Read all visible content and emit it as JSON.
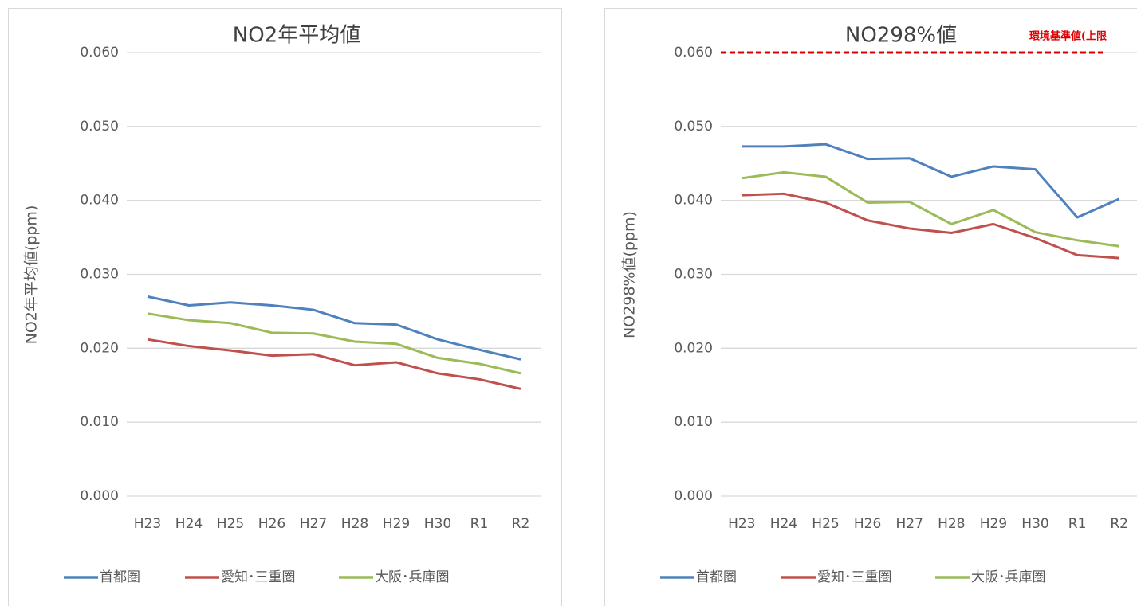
{
  "chart_data": [
    {
      "type": "line",
      "title": "NO2年平均値",
      "y_label": "NO2年平均値(ppm)",
      "categories": [
        "H23",
        "H24",
        "H25",
        "H26",
        "H27",
        "H28",
        "H29",
        "H30",
        "R1",
        "R2"
      ],
      "series": [
        {
          "name": "首都圏",
          "color": "#4f81bd",
          "values": [
            0.027,
            0.0258,
            0.0262,
            0.0258,
            0.0252,
            0.0234,
            0.0232,
            0.0212,
            0.0198,
            0.0185
          ]
        },
        {
          "name": "愛知･三重圏",
          "color": "#c0504d",
          "values": [
            0.0212,
            0.0203,
            0.0197,
            0.019,
            0.0192,
            0.0177,
            0.0181,
            0.0166,
            0.0158,
            0.0145
          ]
        },
        {
          "name": "大阪･兵庫圏",
          "color": "#9bbb59",
          "values": [
            0.0247,
            0.0238,
            0.0234,
            0.0221,
            0.022,
            0.0209,
            0.0206,
            0.0187,
            0.0179,
            0.0166
          ]
        }
      ],
      "ylim": [
        0,
        0.06
      ],
      "yticks": [
        {
          "value": 0,
          "label": "0.000"
        },
        {
          "value": 0.01,
          "label": "0.010"
        },
        {
          "value": 0.02,
          "label": "0.020"
        },
        {
          "value": 0.03,
          "label": "0.030"
        },
        {
          "value": 0.04,
          "label": "0.040"
        },
        {
          "value": 0.05,
          "label": "0.050"
        },
        {
          "value": 0.06,
          "label": "0.060"
        }
      ],
      "grid": true,
      "legend": "bottom"
    },
    {
      "type": "line",
      "title": "NO298%値",
      "y_label": "NO298%値(ppm)",
      "categories": [
        "H23",
        "H24",
        "H25",
        "H26",
        "H27",
        "H28",
        "H29",
        "H30",
        "R1",
        "R2"
      ],
      "series": [
        {
          "name": "首都圏",
          "color": "#4f81bd",
          "values": [
            0.0473,
            0.0473,
            0.0476,
            0.0456,
            0.0457,
            0.0432,
            0.0446,
            0.0442,
            0.0377,
            0.0402
          ]
        },
        {
          "name": "愛知･三重圏",
          "color": "#c0504d",
          "values": [
            0.0407,
            0.0409,
            0.0397,
            0.0373,
            0.0362,
            0.0356,
            0.0368,
            0.0349,
            0.0326,
            0.0322
          ]
        },
        {
          "name": "大阪･兵庫圏",
          "color": "#9bbb59",
          "values": [
            0.043,
            0.0438,
            0.0432,
            0.0397,
            0.0398,
            0.0368,
            0.0387,
            0.0357,
            0.0346,
            0.0338
          ]
        }
      ],
      "ylim": [
        0,
        0.06
      ],
      "yticks": [
        {
          "value": 0,
          "label": "0.000"
        },
        {
          "value": 0.01,
          "label": "0.010"
        },
        {
          "value": 0.02,
          "label": "0.020"
        },
        {
          "value": 0.03,
          "label": "0.030"
        },
        {
          "value": 0.04,
          "label": "0.040"
        },
        {
          "value": 0.05,
          "label": "0.050"
        },
        {
          "value": 0.06,
          "label": "0.060"
        }
      ],
      "grid": true,
      "legend": "bottom",
      "reference_line": {
        "value": 0.06,
        "label": "環境基準値(上限",
        "color": "#e00000"
      }
    }
  ]
}
